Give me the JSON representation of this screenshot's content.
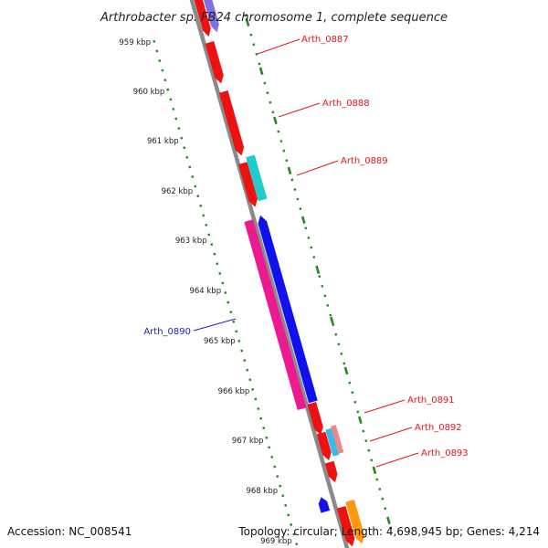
{
  "title": "Arthrobacter sp. FB24 chromosome 1, complete sequence",
  "footer": {
    "accession": "Accession: NC_008541",
    "summary": "Topology: circular; Length: 4,698,945 bp; Genes: 4,214"
  },
  "ticks": [
    "959 kbp",
    "960 kbp",
    "961 kbp",
    "962 kbp",
    "963 kbp",
    "964 kbp",
    "965 kbp",
    "966 kbp",
    "967 kbp",
    "968 kbp",
    "969 kbp"
  ],
  "gene_labels": [
    {
      "name": "Arth_0887",
      "color": "#e8141c"
    },
    {
      "name": "Arth_0888",
      "color": "#e8141c"
    },
    {
      "name": "Arth_0889",
      "color": "#e8141c"
    },
    {
      "name": "Arth_0890",
      "color": "#1a1acc"
    },
    {
      "name": "Arth_0891",
      "color": "#e8141c"
    },
    {
      "name": "Arth_0892",
      "color": "#e8141c"
    },
    {
      "name": "Arth_0893",
      "color": "#e8141c"
    }
  ],
  "colors": {
    "backbone": "#8a8a8a",
    "tick_dots": "#1f8c1f",
    "red": "#ee1111",
    "blue": "#1111ee",
    "magenta": "#ee1890",
    "cyan": "#22cccc",
    "purple": "#7f6fdf",
    "pink": "#ee8888",
    "orange": "#ff9a10",
    "lightblue": "#33bbee"
  }
}
